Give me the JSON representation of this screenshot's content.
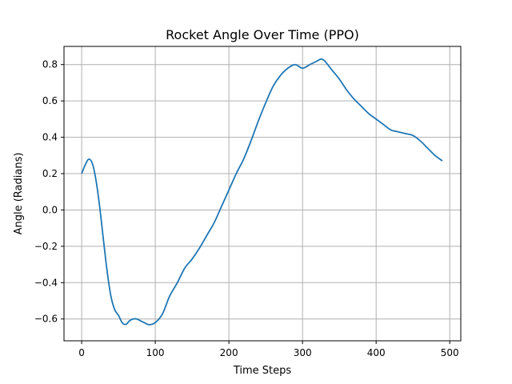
{
  "chart_data": {
    "type": "line",
    "title": "Rocket Angle Over Time (PPO)",
    "xlabel": "Time Steps",
    "ylabel": "Angle (Radians)",
    "xlim": [
      -24,
      515
    ],
    "ylim": [
      -0.72,
      0.9
    ],
    "xticks": [
      0,
      100,
      200,
      300,
      400,
      500
    ],
    "yticks": [
      -0.6,
      -0.4,
      -0.2,
      0.0,
      0.2,
      0.4,
      0.6,
      0.8
    ],
    "xtick_labels": [
      "0",
      "100",
      "200",
      "300",
      "400",
      "500"
    ],
    "ytick_labels": [
      "−0.6",
      "−0.4",
      "−0.2",
      "0.0",
      "0.2",
      "0.4",
      "0.6",
      "0.8"
    ],
    "grid": true,
    "line_color": "#1f77b4",
    "series": [
      {
        "x": [
          0,
          5,
          10,
          15,
          20,
          25,
          30,
          35,
          40,
          45,
          50,
          55,
          60,
          65,
          70,
          75,
          80,
          85,
          90,
          95,
          100,
          105,
          110,
          115,
          120,
          130,
          140,
          150,
          160,
          170,
          180,
          190,
          200,
          210,
          220,
          230,
          240,
          250,
          260,
          270,
          280,
          290,
          300,
          310,
          320,
          325,
          330,
          340,
          350,
          360,
          370,
          380,
          390,
          400,
          410,
          420,
          430,
          440,
          450,
          460,
          470,
          480,
          490
        ],
        "y": [
          0.2,
          0.25,
          0.28,
          0.25,
          0.15,
          0.0,
          -0.18,
          -0.35,
          -0.48,
          -0.55,
          -0.58,
          -0.62,
          -0.63,
          -0.61,
          -0.6,
          -0.6,
          -0.61,
          -0.62,
          -0.63,
          -0.63,
          -0.62,
          -0.6,
          -0.57,
          -0.52,
          -0.47,
          -0.4,
          -0.32,
          -0.27,
          -0.21,
          -0.14,
          -0.07,
          0.02,
          0.11,
          0.2,
          0.28,
          0.38,
          0.49,
          0.59,
          0.68,
          0.74,
          0.78,
          0.8,
          0.78,
          0.8,
          0.82,
          0.83,
          0.82,
          0.77,
          0.72,
          0.66,
          0.61,
          0.57,
          0.53,
          0.5,
          0.47,
          0.44,
          0.43,
          0.42,
          0.41,
          0.38,
          0.34,
          0.3,
          0.27
        ]
      }
    ]
  }
}
